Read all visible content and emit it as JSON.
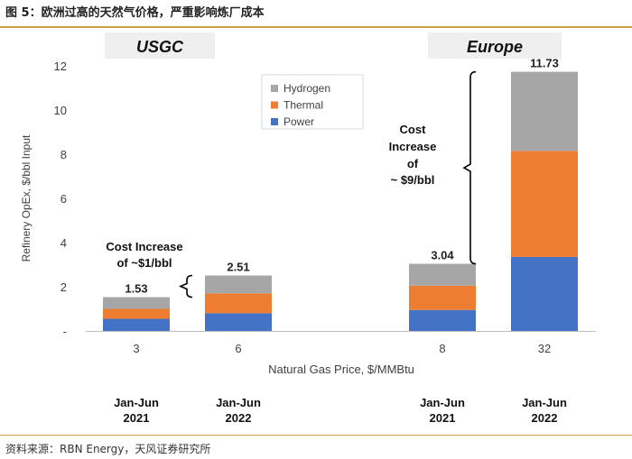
{
  "figure": {
    "title": "图 5：欧洲过高的天然气价格，严重影响炼厂成本",
    "source": "资料来源：RBN Energy，天风证券研究所"
  },
  "colors": {
    "hydrogen": "#a6a6a6",
    "thermal": "#ed7d31",
    "power": "#4472c4",
    "region_box": "#efefef",
    "accent_rule": "#c8a23c"
  },
  "chart_data": {
    "type": "bar",
    "stacked": true,
    "ylabel": "Refinery OpEx, $/bbl Input",
    "xlabel": "Natural Gas Price, $/MMBtu",
    "ylim": [
      0,
      12
    ],
    "yticks": [
      "-",
      "2",
      "4",
      "6",
      "8",
      "10",
      "12"
    ],
    "ytick_values": [
      0,
      2,
      4,
      6,
      8,
      10,
      12
    ],
    "legend": [
      "Hydrogen",
      "Thermal",
      "Power"
    ],
    "regions": [
      "USGC",
      "Europe"
    ],
    "categories": [
      "3",
      "6",
      "8",
      "32"
    ],
    "periods": [
      {
        "line1": "Jan-Jun",
        "line2": "2021"
      },
      {
        "line1": "Jan-Jun",
        "line2": "2022"
      },
      {
        "line1": "Jan-Jun",
        "line2": "2021"
      },
      {
        "line1": "Jan-Jun",
        "line2": "2022"
      }
    ],
    "series": [
      {
        "name": "Power",
        "values": [
          0.55,
          0.8,
          0.95,
          3.35
        ]
      },
      {
        "name": "Thermal",
        "values": [
          0.45,
          0.9,
          1.1,
          4.8
        ]
      },
      {
        "name": "Hydrogen",
        "values": [
          0.53,
          0.81,
          0.99,
          3.58
        ]
      }
    ],
    "totals": [
      "1.53",
      "2.51",
      "3.04",
      "11.73"
    ],
    "annotations": [
      {
        "lines": [
          "Cost Increase",
          "of ~$1/bbl"
        ]
      },
      {
        "lines": [
          "Cost",
          "Increase",
          "of",
          "~ $9/bbl"
        ]
      }
    ]
  }
}
